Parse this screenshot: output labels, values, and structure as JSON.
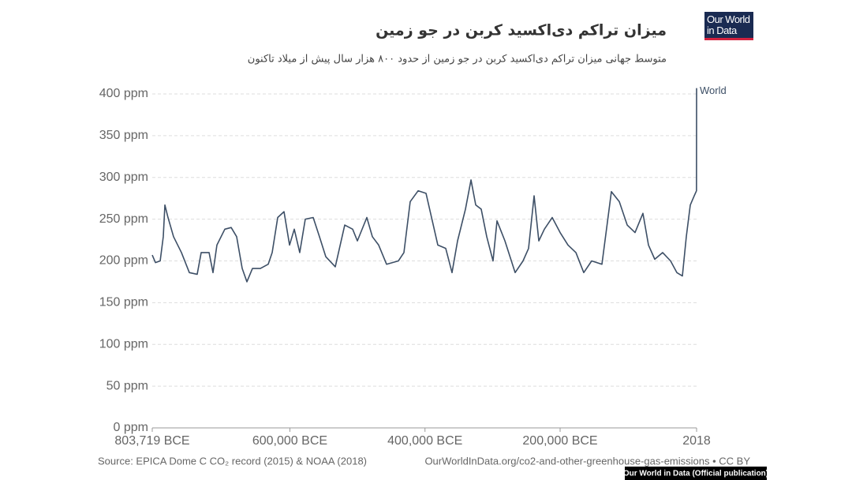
{
  "chart_data": {
    "type": "line",
    "title": "میزان تراکم دی‌اکسید کربن در جو زمین",
    "subtitle": "متوسط جهانی میزان تراکم دی‌اکسید کربن در جو زمین از حدود ۸۰۰ هزار سال پیش از میلاد تاکنون",
    "logo": "Our World in Data",
    "source": "Source: EPICA Dome C CO₂ record (2015) & NOAA (2018)",
    "link": "OurWorldInData.org/co2-and-other-greenhouse-gas-emissions • CC BY",
    "badge": "Our World in Data (Official publication)",
    "grid": true,
    "xlim": [
      -803719,
      2018
    ],
    "xticks": [
      {
        "value": -803719,
        "label": "803,719 BCE"
      },
      {
        "value": -600000,
        "label": "600,000 BCE"
      },
      {
        "value": -400000,
        "label": "400,000 BCE"
      },
      {
        "value": -200000,
        "label": "200,000 BCE"
      },
      2018
    ],
    "ylim": [
      0,
      400
    ],
    "yticks": [
      {
        "value": 0,
        "label": "0 ppm"
      },
      {
        "value": 50,
        "label": "50 ppm"
      },
      {
        "value": 100,
        "label": "100 ppm"
      },
      {
        "value": 150,
        "label": "150 ppm"
      },
      {
        "value": 200,
        "label": "200 ppm"
      },
      {
        "value": 250,
        "label": "250 ppm"
      },
      {
        "value": 300,
        "label": "300 ppm"
      },
      {
        "value": 350,
        "label": "350 ppm"
      },
      {
        "value": 400,
        "label": "400 ppm"
      }
    ],
    "x": [
      -803719,
      -799000,
      -792000,
      -787400,
      -785000,
      -780400,
      -772200,
      -760500,
      -748800,
      -737200,
      -731300,
      -719600,
      -713800,
      -708000,
      -696300,
      -686900,
      -678800,
      -670600,
      -663600,
      -655400,
      -643700,
      -632100,
      -626200,
      -618000,
      -608700,
      -600500,
      -593500,
      -585400,
      -577200,
      -565500,
      -556200,
      -546800,
      -532800,
      -518800,
      -507100,
      -500100,
      -486100,
      -477900,
      -468600,
      -456900,
      -439400,
      -431200,
      -421900,
      -410200,
      -398500,
      -390300,
      -381000,
      -369300,
      -360000,
      -351800,
      -340100,
      -331900,
      -324900,
      -316800,
      -308600,
      -299300,
      -293400,
      -281700,
      -266600,
      -254900,
      -246700,
      -238500,
      -231500,
      -223300,
      -211700,
      -200000,
      -188300,
      -176600,
      -165000,
      -153300,
      -138100,
      -124100,
      -112400,
      -100700,
      -89100,
      -77400,
      -69200,
      -59900,
      -48200,
      -36500,
      -27200,
      -19000,
      -13200,
      -7300,
      -1500,
      1850,
      2018
    ],
    "series": [
      {
        "name": "World",
        "color": "#3d4f66",
        "values": [
          207,
          198,
          200,
          229,
          267,
          252,
          229,
          210,
          186,
          184,
          210,
          210,
          186,
          219,
          238,
          240,
          229,
          191,
          175,
          191,
          191,
          196,
          210,
          252,
          259,
          219,
          238,
          210,
          250,
          252,
          229,
          205,
          193,
          243,
          238,
          224,
          252,
          229,
          219,
          196,
          200,
          210,
          271,
          284,
          281,
          252,
          219,
          215,
          186,
          224,
          262,
          297,
          267,
          262,
          229,
          200,
          248,
          224,
          186,
          200,
          215,
          278,
          224,
          238,
          252,
          234,
          219,
          210,
          186,
          200,
          196,
          283,
          271,
          243,
          234,
          257,
          219,
          202,
          210,
          200,
          186,
          182,
          229,
          267,
          278,
          284,
          407
        ]
      }
    ]
  }
}
